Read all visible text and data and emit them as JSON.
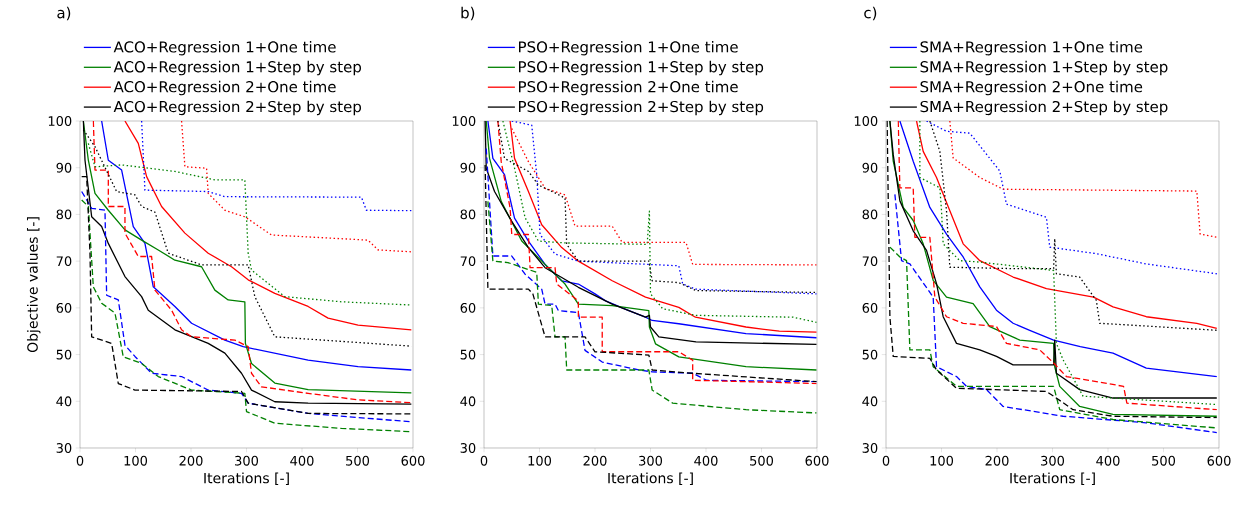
{
  "chart_data": [
    {
      "type": "line",
      "annotations": [
        "a)"
      ],
      "xlabel": "Iterations [-]",
      "ylabel": "Objective values [-]",
      "xlim": [
        0,
        600
      ],
      "ylim": [
        30,
        100
      ],
      "xticks": [
        0,
        100,
        200,
        300,
        400,
        500,
        600
      ],
      "yticks": [
        30,
        40,
        50,
        60,
        70,
        80,
        90,
        100
      ],
      "legend": "top",
      "series": [
        {
          "name": "ACO+Regression 1+One time",
          "color": "#0000ff",
          "line_style": "solid",
          "x": [
            39,
            51,
            75,
            96,
            117,
            132,
            171,
            201,
            261,
            294,
            411,
            501,
            597
          ],
          "values": [
            100,
            91.6,
            89.5,
            77.4,
            73.8,
            64.5,
            60.3,
            56.7,
            53.1,
            51.7,
            48.8,
            47.4,
            46.7
          ]
        },
        {
          "name": "ACO+Regression 1+Step by step",
          "color": "#008000",
          "line_style": "solid",
          "x": [
            6,
            15,
            27,
            51,
            81,
            111,
            141,
            171,
            219,
            243,
            267,
            297,
            298,
            309,
            351,
            411,
            597
          ],
          "values": [
            100,
            91.6,
            84.5,
            80.9,
            76.7,
            74.5,
            72.4,
            70.2,
            68.8,
            63.8,
            61.7,
            61.3,
            52.4,
            48.1,
            43.9,
            42.5,
            41.8
          ]
        },
        {
          "name": "ACO+Regression 2+One time",
          "color": "#ff0000",
          "line_style": "solid",
          "x": [
            81,
            105,
            120,
            147,
            189,
            231,
            273,
            303,
            351,
            411,
            447,
            501,
            597
          ],
          "values": [
            100,
            95.2,
            88.1,
            81.7,
            76,
            71.7,
            68.8,
            66,
            63.1,
            60.3,
            57.8,
            56.3,
            55.3
          ]
        },
        {
          "name": "ACO+Regression 2+Step by step",
          "color": "#000000",
          "line_style": "solid",
          "x": [
            6,
            9,
            21,
            39,
            51,
            81,
            111,
            123,
            171,
            231,
            261,
            291,
            309,
            351,
            411,
            597
          ],
          "values": [
            100,
            91.6,
            79.5,
            77.4,
            73.8,
            66.7,
            62.4,
            59.5,
            55.3,
            52.4,
            50.3,
            46,
            42.4,
            39.9,
            39.6,
            39.4
          ]
        },
        {
          "color": "#0000ff",
          "line_style": "dashed",
          "x": [
            3,
            21,
            45,
            48,
            69,
            81,
            99,
            129,
            183,
            231,
            291,
            303,
            411,
            597
          ],
          "values": [
            84.9,
            81.3,
            80.9,
            62.7,
            61.7,
            52,
            49.6,
            46,
            45.3,
            42.4,
            41.7,
            39.6,
            37.4,
            35.6
          ]
        },
        {
          "color": "#008000",
          "line_style": "dashed",
          "x": [
            3,
            15,
            24,
            39,
            63,
            78,
            111,
            141,
            201,
            297,
            300,
            351,
            471,
            597
          ],
          "values": [
            83.1,
            81.7,
            64.5,
            61,
            58.9,
            49.5,
            48.1,
            45.3,
            42.4,
            41.7,
            37.8,
            35.3,
            34.2,
            33.5
          ]
        },
        {
          "color": "#ff0000",
          "line_style": "dashed",
          "x": [
            24,
            27,
            51,
            51,
            81,
            81,
            105,
            129,
            135,
            165,
            183,
            201,
            279,
            303,
            309,
            327,
            411,
            501,
            597
          ],
          "values": [
            100,
            89.5,
            89.5,
            81.7,
            81.7,
            76,
            71,
            71,
            63.8,
            59.5,
            55.3,
            53.8,
            53.1,
            51.7,
            46,
            43.1,
            41.7,
            40.3,
            39.7
          ]
        },
        {
          "color": "#000000",
          "line_style": "dashed",
          "x": [
            3,
            12,
            18,
            21,
            57,
            69,
            99,
            291,
            303,
            411,
            597
          ],
          "values": [
            88.1,
            88.1,
            71.7,
            53.8,
            52.4,
            43.8,
            42.4,
            42.1,
            39.6,
            37.4,
            37.3
          ]
        },
        {
          "color": "#0000ff",
          "line_style": "dotted",
          "x": [
            111,
            117,
            231,
            261,
            507,
            516,
            597
          ],
          "values": [
            100,
            85.2,
            84.9,
            83.8,
            83.7,
            80.9,
            80.8
          ]
        },
        {
          "color": "#008000",
          "line_style": "dotted",
          "x": [
            15,
            27,
            75,
            171,
            243,
            297,
            303,
            309,
            369,
            471,
            597
          ],
          "values": [
            95.2,
            90.2,
            90.6,
            89.2,
            87.4,
            87.4,
            71.7,
            68.1,
            62.4,
            61.3,
            60.6
          ]
        },
        {
          "color": "#ff0000",
          "line_style": "dotted",
          "x": [
            183,
            189,
            228,
            231,
            261,
            297,
            345,
            519,
            537,
            597
          ],
          "values": [
            100,
            90.2,
            89.9,
            84.5,
            80.9,
            79.5,
            75.6,
            74.5,
            72.4,
            72
          ]
        },
        {
          "color": "#000000",
          "line_style": "dotted",
          "x": [
            6,
            27,
            66,
            99,
            111,
            135,
            159,
            219,
            303,
            315,
            351,
            597
          ],
          "values": [
            98.1,
            94.5,
            84.9,
            84.2,
            81.7,
            80.5,
            71.7,
            69.2,
            69.2,
            62.4,
            53.8,
            51.8
          ]
        }
      ]
    },
    {
      "type": "line",
      "annotations": [
        "b)"
      ],
      "xlabel": "Iterations [-]",
      "xlim": [
        0,
        600
      ],
      "ylim": [
        30,
        100
      ],
      "xticks": [
        0,
        100,
        200,
        300,
        400,
        500,
        600
      ],
      "yticks": [
        30,
        40,
        50,
        60,
        70,
        80,
        90,
        100
      ],
      "legend": "top",
      "series": [
        {
          "name": "PSO+Regression 1+One time",
          "color": "#0000ff",
          "line_style": "solid",
          "x": [
            7,
            16,
            37,
            55,
            80,
            110,
            140,
            170,
            200,
            219,
            261,
            291,
            303,
            351,
            472,
            599
          ],
          "values": [
            100,
            92,
            88.5,
            79.2,
            74.3,
            69.3,
            65.8,
            65.1,
            63,
            61.5,
            59.4,
            58,
            57.3,
            56.6,
            54.5,
            53.6
          ]
        },
        {
          "name": "PSO+Regression 1+Step by step",
          "color": "#008000",
          "line_style": "solid",
          "x": [
            4,
            10,
            31,
            68,
            110,
            146,
            170,
            231,
            297,
            298,
            309,
            351,
            472,
            599
          ],
          "values": [
            100,
            92,
            82.8,
            74.3,
            69.3,
            65.1,
            60.8,
            60.5,
            59.4,
            55.9,
            52.3,
            49.5,
            47.4,
            46.7
          ]
        },
        {
          "name": "PSO+Regression 2+One time",
          "color": "#ff0000",
          "line_style": "solid",
          "x": [
            47,
            55,
            80,
            104,
            140,
            170,
            231,
            291,
            351,
            381,
            472,
            532,
            599
          ],
          "values": [
            100,
            92,
            84.9,
            77.8,
            72.9,
            70,
            65.8,
            62.3,
            60.1,
            58,
            55.9,
            55,
            54.8
          ]
        },
        {
          "name": "PSO+Regression 2+Step by step",
          "color": "#000000",
          "line_style": "solid",
          "x": [
            2,
            4,
            19,
            50,
            80,
            110,
            170,
            231,
            291,
            298,
            300,
            315,
            382,
            599
          ],
          "values": [
            100,
            89.9,
            84.9,
            78.5,
            72.9,
            68.6,
            64.4,
            60.8,
            58,
            58.4,
            55.9,
            53.8,
            52.7,
            52.2
          ]
        },
        {
          "color": "#0000ff",
          "line_style": "dashed",
          "x": [
            4,
            16,
            50,
            74,
            104,
            110,
            128,
            134,
            170,
            182,
            213,
            279,
            303,
            376,
            401,
            599
          ],
          "values": [
            94.1,
            71.1,
            71.1,
            67.2,
            64,
            60.8,
            60.8,
            59.4,
            59,
            50.9,
            48.4,
            46.7,
            46.3,
            46,
            44.5,
            44.2
          ]
        },
        {
          "color": "#008000",
          "line_style": "dashed",
          "x": [
            7,
            16,
            43,
            95,
            98,
            122,
            128,
            146,
            149,
            297,
            303,
            340,
            472,
            599
          ],
          "values": [
            82.8,
            70,
            69.7,
            67.6,
            60.8,
            60.5,
            53.8,
            53.8,
            46.7,
            46.7,
            42.4,
            39.6,
            38.2,
            37.5
          ]
        },
        {
          "color": "#ff0000",
          "line_style": "dashed",
          "x": [
            25,
            31,
            47,
            50,
            80,
            83,
            128,
            131,
            170,
            170,
            213,
            213,
            351,
            376,
            376,
            599
          ],
          "values": [
            100,
            91.3,
            81.4,
            75.7,
            75.7,
            68.6,
            68.6,
            65.1,
            61.5,
            58,
            58,
            50.6,
            50.6,
            48.8,
            44.5,
            43.8
          ]
        },
        {
          "color": "#000000",
          "line_style": "dashed",
          "x": [
            2,
            7,
            80,
            88,
            110,
            182,
            200,
            297,
            303,
            376,
            599
          ],
          "values": [
            90.6,
            64,
            64,
            63,
            53.8,
            53.8,
            50.6,
            49.9,
            46.7,
            46,
            44.2
          ]
        },
        {
          "color": "#0000ff",
          "line_style": "dotted",
          "x": [
            50,
            86,
            95,
            101,
            128,
            170,
            297,
            351,
            358,
            382,
            599
          ],
          "values": [
            100,
            99.1,
            88.5,
            75.7,
            71.5,
            70,
            69.3,
            69,
            65.1,
            64,
            63
          ]
        },
        {
          "color": "#008000",
          "line_style": "dotted",
          "x": [
            34,
            55,
            74,
            98,
            146,
            294,
            298,
            300,
            322,
            382,
            557,
            599
          ],
          "values": [
            100,
            89.9,
            79.3,
            74.3,
            73.9,
            73.6,
            80.7,
            63,
            59.8,
            58.4,
            58,
            56.9
          ]
        },
        {
          "color": "#ff0000",
          "line_style": "dotted",
          "x": [
            50,
            80,
            110,
            146,
            164,
            231,
            249,
            364,
            376,
            599
          ],
          "values": [
            98.4,
            91.3,
            85.6,
            84.2,
            77.5,
            77.5,
            74,
            74,
            69.3,
            69.2
          ]
        },
        {
          "color": "#000000",
          "line_style": "dotted",
          "x": [
            25,
            37,
            80,
            98,
            128,
            146,
            149,
            170,
            297,
            303,
            351,
            382,
            599
          ],
          "values": [
            100,
            92,
            89.2,
            86.3,
            84.6,
            83.5,
            73.6,
            70,
            70,
            65.8,
            65.4,
            63.7,
            63.3
          ]
        }
      ]
    },
    {
      "type": "line",
      "annotations": [
        "c)"
      ],
      "xlabel": "Iterations [-]",
      "xlim": [
        0,
        600
      ],
      "ylim": [
        30,
        100
      ],
      "xticks": [
        0,
        100,
        200,
        300,
        400,
        500,
        600
      ],
      "yticks": [
        30,
        40,
        50,
        60,
        70,
        80,
        90,
        100
      ],
      "legend": "top",
      "series": [
        {
          "name": "SMA+Regression 1+One time",
          "color": "#0000ff",
          "line_style": "solid",
          "x": [
            25,
            49,
            79,
            109,
            139,
            169,
            199,
            229,
            259,
            302,
            350,
            409,
            469,
            596
          ],
          "values": [
            100,
            91.4,
            81.5,
            75.8,
            70.9,
            64.5,
            59.5,
            56.7,
            55.2,
            53.1,
            51.7,
            50.3,
            47.1,
            45.3
          ]
        },
        {
          "name": "SMA+Regression 1+Step by step",
          "color": "#008000",
          "line_style": "solid",
          "x": [
            7,
            13,
            31,
            49,
            67,
            85,
            109,
            157,
            187,
            241,
            302,
            304,
            313,
            349,
            409,
            596
          ],
          "values": [
            100,
            91.4,
            81.5,
            78.7,
            73.7,
            65.9,
            62.3,
            60.9,
            56,
            53.1,
            52.4,
            47.4,
            43.2,
            38.9,
            37.2,
            36.8
          ]
        },
        {
          "name": "SMA+Regression 2+One time",
          "color": "#ff0000",
          "line_style": "solid",
          "x": [
            55,
            67,
            91,
            115,
            139,
            169,
            229,
            289,
            374,
            409,
            469,
            560,
            596
          ],
          "values": [
            100,
            93.5,
            87.9,
            80.8,
            73.7,
            70.1,
            66.6,
            64.1,
            62.3,
            60.2,
            58.1,
            56.7,
            55.6
          ]
        },
        {
          "name": "SMA+Regression 2+Step by step",
          "color": "#000000",
          "line_style": "solid",
          "x": [
            7,
            13,
            25,
            49,
            73,
            91,
            103,
            127,
            169,
            199,
            229,
            302,
            304,
            307,
            349,
            409,
            596
          ],
          "values": [
            100,
            92.8,
            82.9,
            76.5,
            72.3,
            65.2,
            58.1,
            52.4,
            51,
            49.6,
            47.8,
            47.8,
            53.1,
            46,
            42.5,
            40.7,
            40.7
          ]
        },
        {
          "color": "#0000ff",
          "line_style": "dashed",
          "x": [
            16,
            28,
            43,
            85,
            91,
            127,
            145,
            181,
            211,
            319,
            469,
            596
          ],
          "values": [
            84.3,
            70.1,
            69.4,
            62.3,
            47.4,
            45.3,
            43.2,
            42.5,
            38.9,
            36.8,
            35.4,
            33.3
          ]
        },
        {
          "color": "#008000",
          "line_style": "dashed",
          "x": [
            7,
            25,
            37,
            43,
            79,
            85,
            127,
            302,
            313,
            409,
            596
          ],
          "values": [
            73,
            70.9,
            70.1,
            51,
            51,
            47.4,
            43.2,
            43.2,
            38.2,
            36.1,
            34.3
          ]
        },
        {
          "color": "#ff0000",
          "line_style": "dashed",
          "x": [
            22,
            25,
            49,
            52,
            79,
            88,
            109,
            139,
            199,
            217,
            277,
            302,
            325,
            428,
            434,
            596
          ],
          "values": [
            100,
            85.7,
            85.7,
            75.1,
            75.1,
            62.3,
            58.1,
            56.7,
            56,
            52.4,
            51,
            48.2,
            45.3,
            43.2,
            39.6,
            38.2
          ]
        },
        {
          "color": "#000000",
          "line_style": "dashed",
          "x": [
            2,
            7,
            13,
            79,
            91,
            127,
            289,
            302,
            337,
            409,
            596
          ],
          "values": [
            100,
            58.1,
            49.6,
            49.2,
            46.7,
            42.8,
            42.1,
            41.1,
            38.2,
            36.8,
            36.5
          ]
        },
        {
          "color": "#0000ff",
          "line_style": "dotted",
          "x": [
            73,
            109,
            151,
            205,
            217,
            289,
            295,
            379,
            469,
            596
          ],
          "values": [
            100,
            97.8,
            97.4,
            89.3,
            82.2,
            79.4,
            73,
            71.6,
            69.4,
            67.3
          ]
        },
        {
          "color": "#008000",
          "line_style": "dotted",
          "x": [
            61,
            61,
            97,
            100,
            103,
            133,
            169,
            302,
            307,
            319,
            355,
            596
          ],
          "values": [
            100,
            87.9,
            85.7,
            80.8,
            73.7,
            70.1,
            69.8,
            68,
            52.4,
            48.9,
            41.1,
            39.3
          ]
        },
        {
          "color": "#ff0000",
          "line_style": "dotted",
          "x": [
            115,
            121,
            169,
            211,
            560,
            566,
            596
          ],
          "values": [
            100,
            92.1,
            87.9,
            85.4,
            85,
            75.8,
            75.1
          ]
        },
        {
          "color": "#000000",
          "line_style": "dotted",
          "x": [
            79,
            97,
            109,
            115,
            229,
            302,
            304,
            307,
            349,
            379,
            385,
            596
          ],
          "values": [
            100,
            93.5,
            80.8,
            68.7,
            68.4,
            68.4,
            74.8,
            67.3,
            66.6,
            61.6,
            56.7,
            55.2
          ]
        }
      ]
    }
  ]
}
